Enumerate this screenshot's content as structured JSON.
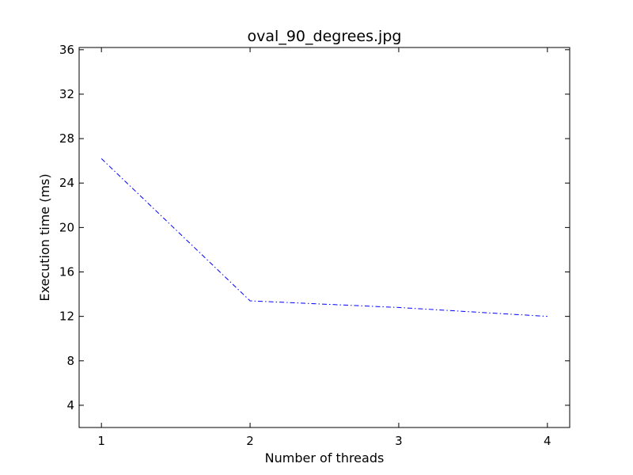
{
  "chart_data": {
    "type": "line",
    "title": "oval_90_degrees.jpg",
    "xlabel": "Number of threads",
    "ylabel": "Execution time (ms)",
    "x": [
      1,
      2,
      3,
      4
    ],
    "xlim": [
      0.85,
      4.15
    ],
    "ylim": [
      2,
      36.2
    ],
    "xticks": [
      1,
      2,
      3,
      4
    ],
    "yticks": [
      4,
      8,
      12,
      16,
      20,
      24,
      28,
      32,
      36
    ],
    "grid": false,
    "series": [
      {
        "values": [
          26.2,
          13.4,
          12.8,
          12.0
        ],
        "color": "#0000ff",
        "linestyle": "dash-dot"
      }
    ]
  }
}
